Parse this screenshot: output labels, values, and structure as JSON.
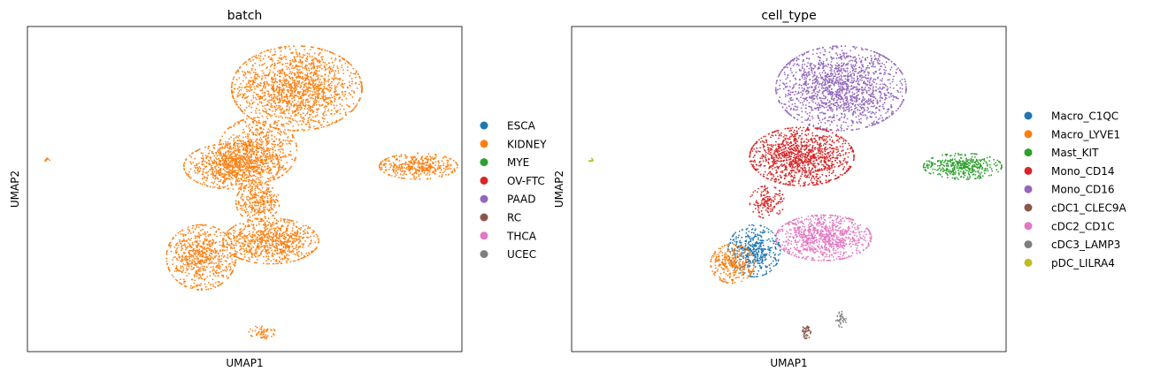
{
  "chart_data": [
    {
      "type": "scatter",
      "title": "batch",
      "xlabel": "UMAP1",
      "ylabel": "UMAP2",
      "grid": false,
      "legend_placement": "right",
      "series": [
        {
          "name": "ESCA",
          "color": "#1f77b4"
        },
        {
          "name": "KIDNEY",
          "color": "#ff7f0e"
        },
        {
          "name": "MYE",
          "color": "#2ca02c"
        },
        {
          "name": "OV-FTC",
          "color": "#d62728"
        },
        {
          "name": "PAAD",
          "color": "#9467bd"
        },
        {
          "name": "RC",
          "color": "#8c564b"
        },
        {
          "name": "THCA",
          "color": "#e377c2"
        },
        {
          "name": "UCEC",
          "color": "#7f7f7f"
        }
      ],
      "clusters": [
        {
          "series": "KIDNEY",
          "x": 0.62,
          "y": 0.81,
          "rx": 0.15,
          "ry": 0.13,
          "n": 1600
        },
        {
          "series": "KIDNEY",
          "x": 0.53,
          "y": 0.62,
          "rx": 0.09,
          "ry": 0.1,
          "n": 600
        },
        {
          "series": "KIDNEY",
          "x": 0.47,
          "y": 0.57,
          "rx": 0.11,
          "ry": 0.07,
          "n": 800
        },
        {
          "series": "KIDNEY",
          "x": 0.53,
          "y": 0.46,
          "rx": 0.05,
          "ry": 0.06,
          "n": 300
        },
        {
          "series": "KIDNEY",
          "x": 0.4,
          "y": 0.29,
          "rx": 0.08,
          "ry": 0.1,
          "n": 700
        },
        {
          "series": "KIDNEY",
          "x": 0.56,
          "y": 0.34,
          "rx": 0.11,
          "ry": 0.07,
          "n": 800
        },
        {
          "series": "KIDNEY",
          "x": 0.9,
          "y": 0.57,
          "rx": 0.09,
          "ry": 0.04,
          "n": 400
        },
        {
          "series": "KIDNEY",
          "x": 0.54,
          "y": 0.06,
          "rx": 0.03,
          "ry": 0.02,
          "n": 60
        },
        {
          "series": "KIDNEY",
          "x": 0.045,
          "y": 0.59,
          "rx": 0.006,
          "ry": 0.006,
          "n": 8
        }
      ]
    },
    {
      "type": "scatter",
      "title": "cell_type",
      "xlabel": "UMAP1",
      "ylabel": "UMAP2",
      "grid": false,
      "legend_placement": "right",
      "series": [
        {
          "name": "Macro_C1QC",
          "color": "#1f77b4"
        },
        {
          "name": "Macro_LYVE1",
          "color": "#ff7f0e"
        },
        {
          "name": "Mast_KIT",
          "color": "#2ca02c"
        },
        {
          "name": "Mono_CD14",
          "color": "#d62728"
        },
        {
          "name": "Mono_CD16",
          "color": "#9467bd"
        },
        {
          "name": "cDC1_CLEC9A",
          "color": "#8c564b"
        },
        {
          "name": "cDC2_CD1C",
          "color": "#e377c2"
        },
        {
          "name": "cDC3_LAMP3",
          "color": "#7f7f7f"
        },
        {
          "name": "pDC_LILRA4",
          "color": "#bcbd22"
        }
      ],
      "clusters": [
        {
          "series": "Mono_CD16",
          "x": 0.62,
          "y": 0.81,
          "rx": 0.15,
          "ry": 0.13,
          "n": 1600
        },
        {
          "series": "Mono_CD14",
          "x": 0.53,
          "y": 0.6,
          "rx": 0.12,
          "ry": 0.09,
          "n": 1200
        },
        {
          "series": "Mono_CD14",
          "x": 0.45,
          "y": 0.46,
          "rx": 0.04,
          "ry": 0.05,
          "n": 150
        },
        {
          "series": "cDC2_CD1C",
          "x": 0.58,
          "y": 0.35,
          "rx": 0.11,
          "ry": 0.07,
          "n": 900
        },
        {
          "series": "Macro_C1QC",
          "x": 0.42,
          "y": 0.31,
          "rx": 0.06,
          "ry": 0.08,
          "n": 450
        },
        {
          "series": "Macro_LYVE1",
          "x": 0.37,
          "y": 0.27,
          "rx": 0.05,
          "ry": 0.06,
          "n": 300
        },
        {
          "series": "Mast_KIT",
          "x": 0.9,
          "y": 0.57,
          "rx": 0.09,
          "ry": 0.04,
          "n": 400
        },
        {
          "series": "cDC1_CLEC9A",
          "x": 0.54,
          "y": 0.06,
          "rx": 0.012,
          "ry": 0.02,
          "n": 40
        },
        {
          "series": "cDC3_LAMP3",
          "x": 0.62,
          "y": 0.1,
          "rx": 0.012,
          "ry": 0.025,
          "n": 40
        },
        {
          "series": "pDC_LILRA4",
          "x": 0.045,
          "y": 0.59,
          "rx": 0.006,
          "ry": 0.006,
          "n": 8
        }
      ]
    }
  ]
}
